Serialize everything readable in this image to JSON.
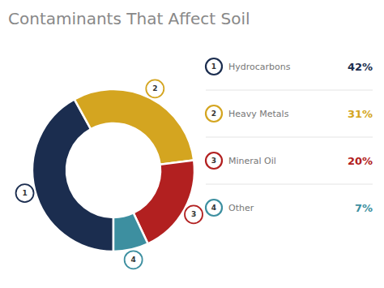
{
  "chart_data": {
    "type": "pie",
    "title": "Contaminants That Affect Soil",
    "categories": [
      "Hydrocarbons",
      "Heavy Metals",
      "Mineral Oil",
      "Other"
    ],
    "values": [
      42,
      31,
      20,
      7
    ],
    "value_labels": [
      "42%",
      "31%",
      "20%",
      "7%"
    ],
    "colors": [
      "#1b2d4f",
      "#d4a520",
      "#b22020",
      "#3d8fa0"
    ],
    "annotations": [
      "1",
      "2",
      "3",
      "4"
    ],
    "legend": "right"
  }
}
